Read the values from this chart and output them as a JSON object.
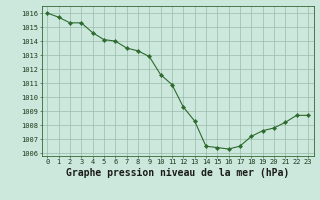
{
  "x": [
    0,
    1,
    2,
    3,
    4,
    5,
    6,
    7,
    8,
    9,
    10,
    11,
    12,
    13,
    14,
    15,
    16,
    17,
    18,
    19,
    20,
    21,
    22,
    23
  ],
  "y": [
    1016.0,
    1015.7,
    1015.3,
    1015.3,
    1014.6,
    1014.1,
    1014.0,
    1013.5,
    1013.3,
    1012.9,
    1011.6,
    1010.9,
    1009.3,
    1008.3,
    1006.5,
    1006.4,
    1006.3,
    1006.5,
    1007.2,
    1007.6,
    1007.8,
    1008.2,
    1008.7,
    1008.7
  ],
  "line_color": "#2d6a2d",
  "marker": "D",
  "markersize": 2.2,
  "bg_color": "#cce8dd",
  "grid_color": "#99bbaa",
  "xlabel": "Graphe pression niveau de la mer (hPa)",
  "xlabel_fontsize": 7,
  "ylim": [
    1005.8,
    1016.5
  ],
  "xlim": [
    -0.5,
    23.5
  ],
  "ytick_min": 1006,
  "ytick_max": 1016,
  "ytick_step": 1,
  "tick_fontsize": 5.0,
  "line_width": 0.8
}
